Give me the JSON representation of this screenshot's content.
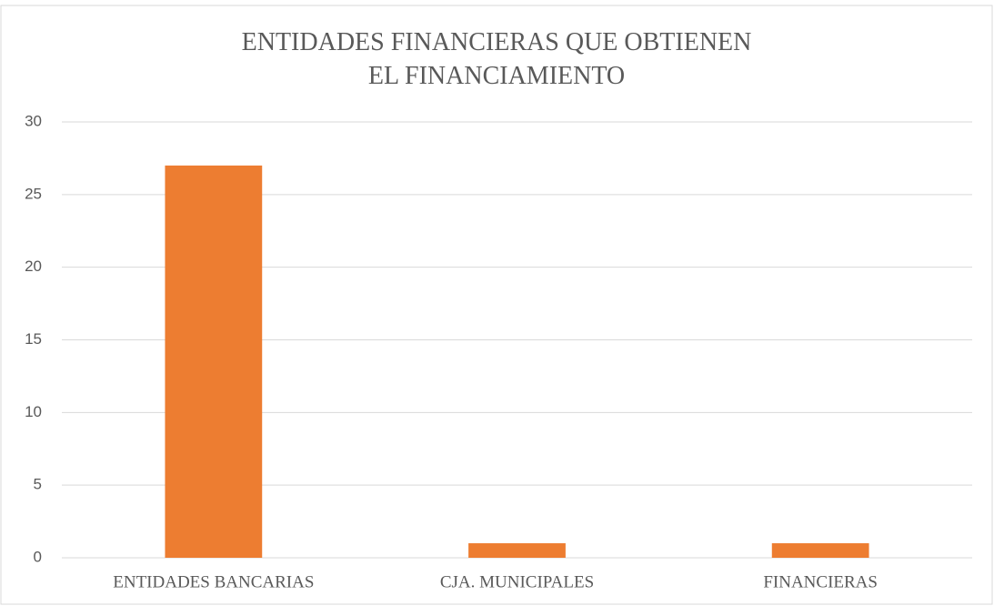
{
  "chart_data": {
    "type": "bar",
    "title": "ENTIDADES FINANCIERAS QUE OBTIENEN EL FINANCIAMIENTO",
    "categories": [
      "ENTIDADES BANCARIAS",
      "CJA. MUNICIPALES",
      "FINANCIERAS"
    ],
    "values": [
      27,
      1,
      1
    ],
    "color": "#ed7d31",
    "ylim": [
      0,
      30
    ],
    "yticks": [
      0,
      5,
      10,
      15,
      20,
      25,
      30
    ],
    "grid": true
  }
}
